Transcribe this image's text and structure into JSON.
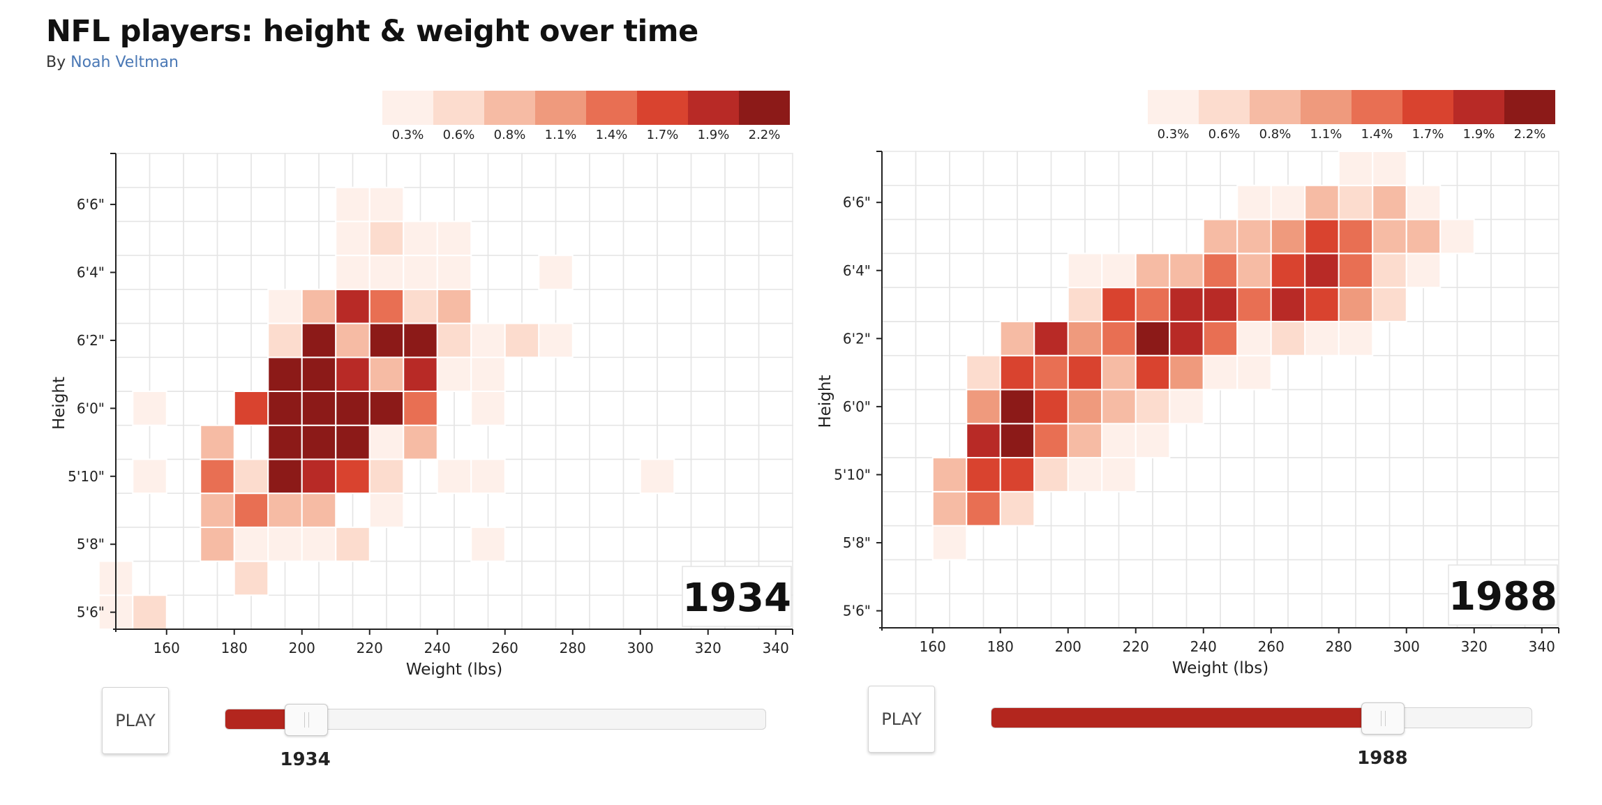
{
  "header": {
    "title": "NFL players: height & weight over time",
    "by_prefix": "By",
    "author": "Noah Veltman"
  },
  "legend": {
    "labels": [
      "0.3%",
      "0.6%",
      "0.8%",
      "1.1%",
      "1.4%",
      "1.7%",
      "1.9%",
      "2.2%"
    ],
    "colors": [
      "#fef0ea",
      "#fcdcce",
      "#f6bba4",
      "#ef9a7d",
      "#e86f53",
      "#d9432f",
      "#b82a26",
      "#8c1a18"
    ]
  },
  "controls": {
    "play_label": "PLAY",
    "year_range": [
      1920,
      2014
    ]
  },
  "chart_data": [
    {
      "type": "heatmap",
      "year": "1934",
      "xlabel": "Weight (lbs)",
      "ylabel": "Height",
      "x_ticks": [
        "160",
        "180",
        "200",
        "220",
        "240",
        "260",
        "280",
        "300",
        "320",
        "340"
      ],
      "x_tick_values": [
        160,
        180,
        200,
        220,
        240,
        260,
        280,
        300,
        320,
        340
      ],
      "y_ticks": [
        "5'6\"",
        "5'8\"",
        "5'10\"",
        "6'0\"",
        "6'2\"",
        "6'4\"",
        "6'6\""
      ],
      "y_tick_values": [
        66,
        68,
        70,
        72,
        74,
        76,
        78
      ],
      "xlim": [
        145,
        345
      ],
      "ylim": [
        65.5,
        79.5
      ],
      "bin_width_lbs": 10,
      "bin_height_in": 1,
      "level_meaning": "index into legend.labels (share of players)",
      "cells": [
        [
          145,
          66,
          0
        ],
        [
          155,
          66,
          1
        ],
        [
          145,
          67,
          0
        ],
        [
          185,
          67,
          1
        ],
        [
          175,
          68,
          2
        ],
        [
          185,
          68,
          0
        ],
        [
          195,
          68,
          0
        ],
        [
          205,
          68,
          0
        ],
        [
          215,
          68,
          1
        ],
        [
          255,
          68,
          0
        ],
        [
          175,
          69,
          2
        ],
        [
          185,
          69,
          4
        ],
        [
          195,
          69,
          2
        ],
        [
          205,
          69,
          2
        ],
        [
          225,
          69,
          0
        ],
        [
          155,
          70,
          0
        ],
        [
          175,
          70,
          4
        ],
        [
          185,
          70,
          1
        ],
        [
          195,
          70,
          7
        ],
        [
          205,
          70,
          6
        ],
        [
          215,
          70,
          5
        ],
        [
          225,
          70,
          1
        ],
        [
          245,
          70,
          0
        ],
        [
          255,
          70,
          0
        ],
        [
          305,
          70,
          0
        ],
        [
          175,
          71,
          2
        ],
        [
          195,
          71,
          7
        ],
        [
          205,
          71,
          7
        ],
        [
          215,
          71,
          7
        ],
        [
          225,
          71,
          0
        ],
        [
          235,
          71,
          2
        ],
        [
          155,
          72,
          0
        ],
        [
          185,
          72,
          5
        ],
        [
          195,
          72,
          7
        ],
        [
          205,
          72,
          7
        ],
        [
          215,
          72,
          7
        ],
        [
          225,
          72,
          7
        ],
        [
          235,
          72,
          4
        ],
        [
          255,
          72,
          0
        ],
        [
          195,
          73,
          7
        ],
        [
          205,
          73,
          7
        ],
        [
          215,
          73,
          6
        ],
        [
          225,
          73,
          2
        ],
        [
          235,
          73,
          6
        ],
        [
          245,
          73,
          0
        ],
        [
          255,
          73,
          0
        ],
        [
          195,
          74,
          1
        ],
        [
          205,
          74,
          7
        ],
        [
          215,
          74,
          2
        ],
        [
          225,
          74,
          7
        ],
        [
          235,
          74,
          7
        ],
        [
          245,
          74,
          1
        ],
        [
          255,
          74,
          0
        ],
        [
          265,
          74,
          1
        ],
        [
          275,
          74,
          0
        ],
        [
          195,
          75,
          0
        ],
        [
          205,
          75,
          2
        ],
        [
          215,
          75,
          6
        ],
        [
          225,
          75,
          4
        ],
        [
          235,
          75,
          1
        ],
        [
          245,
          75,
          2
        ],
        [
          215,
          76,
          0
        ],
        [
          225,
          76,
          0
        ],
        [
          235,
          76,
          0
        ],
        [
          245,
          76,
          0
        ],
        [
          275,
          76,
          0
        ],
        [
          215,
          77,
          0
        ],
        [
          225,
          77,
          1
        ],
        [
          235,
          77,
          0
        ],
        [
          245,
          77,
          0
        ],
        [
          215,
          78,
          0
        ],
        [
          225,
          78,
          0
        ]
      ]
    },
    {
      "type": "heatmap",
      "year": "1988",
      "xlabel": "Weight (lbs)",
      "ylabel": "Height",
      "x_ticks": [
        "160",
        "180",
        "200",
        "220",
        "240",
        "260",
        "280",
        "300",
        "320",
        "340"
      ],
      "x_tick_values": [
        160,
        180,
        200,
        220,
        240,
        260,
        280,
        300,
        320,
        340
      ],
      "y_ticks": [
        "5'6\"",
        "5'8\"",
        "5'10\"",
        "6'0\"",
        "6'2\"",
        "6'4\"",
        "6'6\""
      ],
      "y_tick_values": [
        66,
        68,
        70,
        72,
        74,
        76,
        78
      ],
      "xlim": [
        145,
        345
      ],
      "ylim": [
        65.5,
        79.5
      ],
      "bin_width_lbs": 10,
      "bin_height_in": 1,
      "level_meaning": "index into legend.labels (share of players)",
      "cells": [
        [
          165,
          68,
          0
        ],
        [
          165,
          69,
          2
        ],
        [
          175,
          69,
          4
        ],
        [
          185,
          69,
          1
        ],
        [
          165,
          70,
          2
        ],
        [
          175,
          70,
          5
        ],
        [
          185,
          70,
          5
        ],
        [
          195,
          70,
          1
        ],
        [
          205,
          70,
          0
        ],
        [
          215,
          70,
          0
        ],
        [
          175,
          71,
          6
        ],
        [
          185,
          71,
          7
        ],
        [
          195,
          71,
          4
        ],
        [
          205,
          71,
          2
        ],
        [
          215,
          71,
          0
        ],
        [
          225,
          71,
          0
        ],
        [
          175,
          72,
          3
        ],
        [
          185,
          72,
          7
        ],
        [
          195,
          72,
          5
        ],
        [
          205,
          72,
          3
        ],
        [
          215,
          72,
          2
        ],
        [
          225,
          72,
          1
        ],
        [
          235,
          72,
          0
        ],
        [
          175,
          73,
          1
        ],
        [
          185,
          73,
          5
        ],
        [
          195,
          73,
          4
        ],
        [
          205,
          73,
          5
        ],
        [
          215,
          73,
          2
        ],
        [
          225,
          73,
          5
        ],
        [
          235,
          73,
          3
        ],
        [
          245,
          73,
          0
        ],
        [
          255,
          73,
          0
        ],
        [
          185,
          74,
          2
        ],
        [
          195,
          74,
          6
        ],
        [
          205,
          74,
          3
        ],
        [
          215,
          74,
          4
        ],
        [
          225,
          74,
          7
        ],
        [
          235,
          74,
          6
        ],
        [
          245,
          74,
          4
        ],
        [
          255,
          74,
          0
        ],
        [
          265,
          74,
          1
        ],
        [
          275,
          74,
          0
        ],
        [
          285,
          74,
          0
        ],
        [
          205,
          75,
          1
        ],
        [
          215,
          75,
          5
        ],
        [
          225,
          75,
          4
        ],
        [
          235,
          75,
          6
        ],
        [
          245,
          75,
          6
        ],
        [
          255,
          75,
          4
        ],
        [
          265,
          75,
          6
        ],
        [
          275,
          75,
          5
        ],
        [
          285,
          75,
          3
        ],
        [
          295,
          75,
          1
        ],
        [
          205,
          76,
          0
        ],
        [
          215,
          76,
          0
        ],
        [
          225,
          76,
          2
        ],
        [
          235,
          76,
          2
        ],
        [
          245,
          76,
          4
        ],
        [
          255,
          76,
          2
        ],
        [
          265,
          76,
          5
        ],
        [
          275,
          76,
          6
        ],
        [
          285,
          76,
          4
        ],
        [
          295,
          76,
          1
        ],
        [
          305,
          76,
          0
        ],
        [
          245,
          77,
          2
        ],
        [
          255,
          77,
          2
        ],
        [
          265,
          77,
          3
        ],
        [
          275,
          77,
          5
        ],
        [
          285,
          77,
          4
        ],
        [
          295,
          77,
          2
        ],
        [
          305,
          77,
          2
        ],
        [
          315,
          77,
          0
        ],
        [
          255,
          78,
          0
        ],
        [
          265,
          78,
          0
        ],
        [
          275,
          78,
          2
        ],
        [
          285,
          78,
          1
        ],
        [
          295,
          78,
          2
        ],
        [
          305,
          78,
          0
        ],
        [
          285,
          79,
          0
        ],
        [
          295,
          79,
          0
        ]
      ]
    }
  ]
}
